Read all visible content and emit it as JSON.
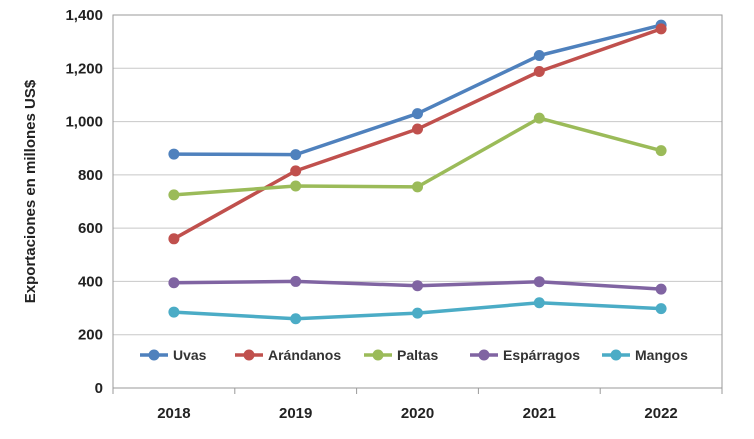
{
  "chart_data": {
    "type": "line",
    "title": "",
    "xlabel": "",
    "ylabel": "Exportaciones en millones US$",
    "categories": [
      "2018",
      "2019",
      "2020",
      "2021",
      "2022"
    ],
    "ylim": [
      0,
      1400
    ],
    "yticks": [
      "0",
      "200",
      "400",
      "600",
      "800",
      "1,000",
      "1,200",
      "1,400"
    ],
    "grid": true,
    "legend_position": "bottom-inside",
    "series": [
      {
        "name": "Uvas",
        "color": "#4f81bd",
        "values": [
          878,
          876,
          1030,
          1248,
          1362
        ]
      },
      {
        "name": "Arándanos",
        "color": "#c0504d",
        "values": [
          560,
          815,
          972,
          1188,
          1348
        ]
      },
      {
        "name": "Paltas",
        "color": "#9bbb59",
        "values": [
          725,
          758,
          755,
          1013,
          891
        ]
      },
      {
        "name": "Espárragos",
        "color": "#8064a2",
        "values": [
          395,
          400,
          384,
          399,
          371
        ]
      },
      {
        "name": "Mangos",
        "color": "#4bacc6",
        "values": [
          285,
          260,
          281,
          320,
          298
        ]
      }
    ]
  }
}
